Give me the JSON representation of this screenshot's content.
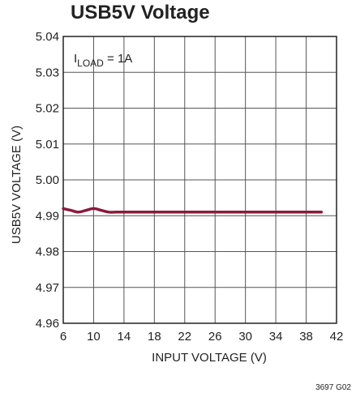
{
  "chart_data": {
    "type": "line",
    "title": "USB5V Voltage",
    "xlabel": "INPUT VOLTAGE (V)",
    "ylabel": "USB5V VOLTAGE (V)",
    "xlim": [
      6,
      42
    ],
    "ylim": [
      4.96,
      5.04
    ],
    "xticks": [
      6,
      10,
      14,
      18,
      22,
      26,
      30,
      34,
      38,
      42
    ],
    "yticks": [
      4.96,
      4.97,
      4.98,
      4.99,
      5.0,
      5.01,
      5.02,
      5.03,
      5.04
    ],
    "xtick_labels": [
      "6",
      "10",
      "14",
      "18",
      "22",
      "26",
      "30",
      "34",
      "38",
      "42"
    ],
    "ytick_labels": [
      "4.96",
      "4.97",
      "4.98",
      "4.99",
      "5.00",
      "5.01",
      "5.02",
      "5.03",
      "5.04"
    ],
    "grid": true,
    "annotation": {
      "main": "I",
      "sub": "LOAD",
      "rest": " = 1A"
    },
    "figure_id": "3697 G02",
    "line_color": "#8b1a3c",
    "series": [
      {
        "x": [
          6,
          7,
          8,
          9,
          10,
          11,
          12,
          13,
          14,
          16,
          18,
          20,
          22,
          24,
          26,
          28,
          30,
          32,
          34,
          36,
          38,
          40
        ],
        "y": [
          4.992,
          4.9915,
          4.991,
          4.9915,
          4.992,
          4.9915,
          4.991,
          4.991,
          4.991,
          4.991,
          4.991,
          4.991,
          4.991,
          4.991,
          4.991,
          4.991,
          4.991,
          4.991,
          4.991,
          4.991,
          4.991,
          4.991
        ]
      }
    ]
  }
}
